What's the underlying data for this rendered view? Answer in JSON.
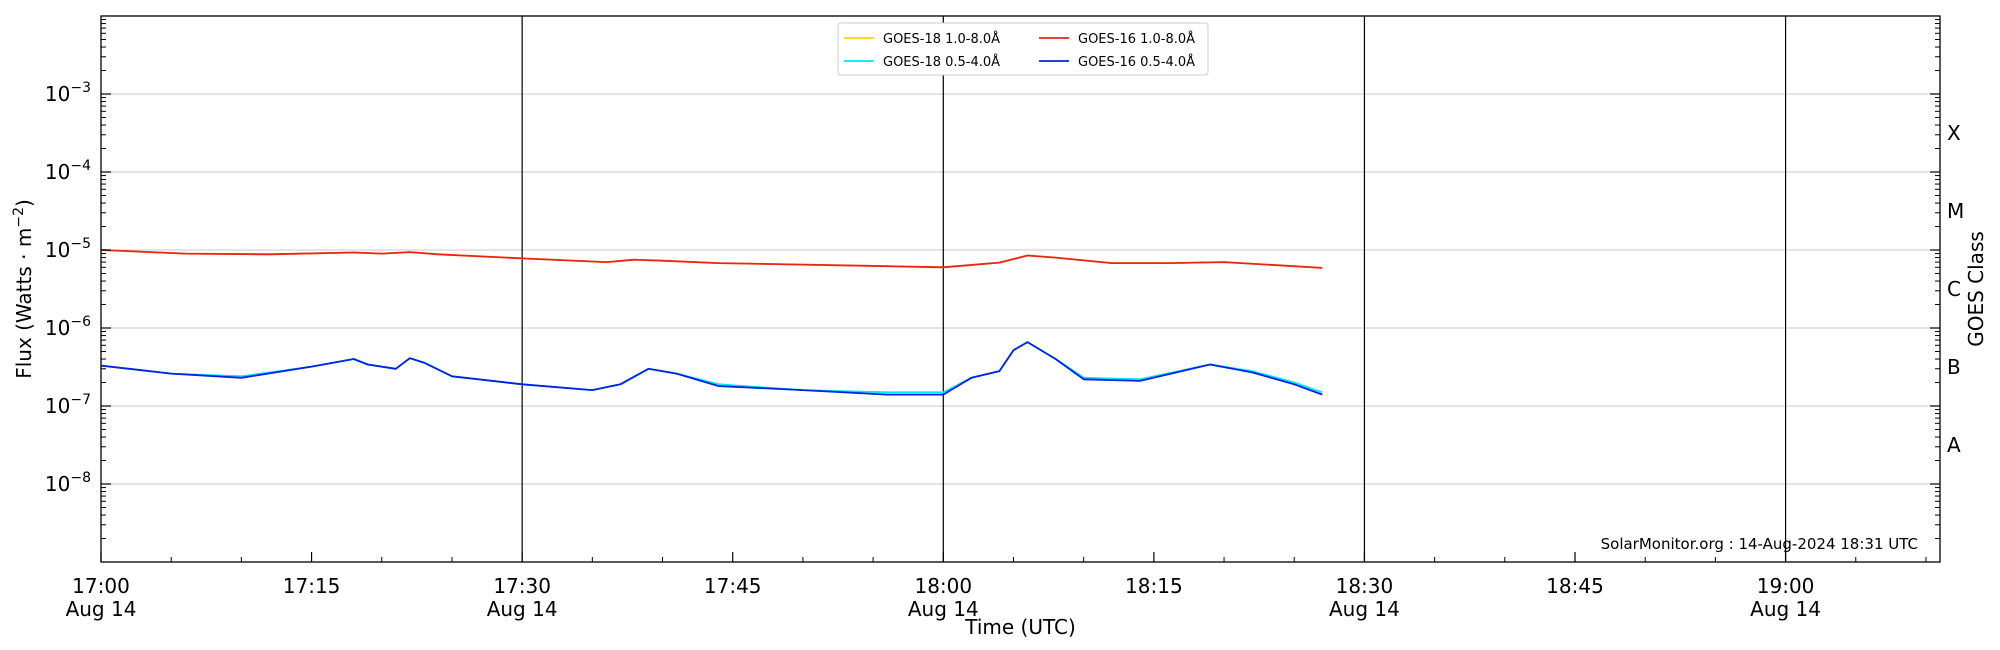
{
  "chart_data": {
    "type": "line",
    "title": "",
    "xlabel": "Time (UTC)",
    "ylabel_main": "Flux (Watts · m",
    "ylabel_exp": "−2",
    "ylabel_end": ")",
    "right_ylabel": "GOES Class",
    "yscale": "log",
    "ylim": [
      1e-09,
      0.01
    ],
    "xlim": [
      "17:00",
      "19:11"
    ],
    "grid": "horizontal",
    "legend_position": "top-center",
    "credit": "SolarMonitor.org : 14-Aug-2024 18:31 UTC",
    "y_ticks": [
      {
        "value": 1e-08,
        "base": "10",
        "exp": "−8"
      },
      {
        "value": 1e-07,
        "base": "10",
        "exp": "−7"
      },
      {
        "value": 1e-06,
        "base": "10",
        "exp": "−6"
      },
      {
        "value": 1e-05,
        "base": "10",
        "exp": "−5"
      },
      {
        "value": 0.0001,
        "base": "10",
        "exp": "−4"
      },
      {
        "value": 0.001,
        "base": "10",
        "exp": "−3"
      }
    ],
    "x_ticks": [
      {
        "t": "17:00",
        "time": "17:00",
        "date": "Aug 14"
      },
      {
        "t": "17:15",
        "time": "17:15",
        "date": ""
      },
      {
        "t": "17:30",
        "time": "17:30",
        "date": "Aug 14"
      },
      {
        "t": "17:45",
        "time": "17:45",
        "date": ""
      },
      {
        "t": "18:00",
        "time": "18:00",
        "date": "Aug 14"
      },
      {
        "t": "18:15",
        "time": "18:15",
        "date": ""
      },
      {
        "t": "18:30",
        "time": "18:30",
        "date": "Aug 14"
      },
      {
        "t": "18:45",
        "time": "18:45",
        "date": ""
      },
      {
        "t": "19:00",
        "time": "19:00",
        "date": "Aug 14"
      }
    ],
    "vertical_lines": [
      "17:30",
      "18:00",
      "18:30",
      "19:00"
    ],
    "goes_classes": [
      {
        "label": "A",
        "value": 3.16e-08
      },
      {
        "label": "B",
        "value": 3.16e-07
      },
      {
        "label": "C",
        "value": 3.16e-06
      },
      {
        "label": "M",
        "value": 3.16e-05
      },
      {
        "label": "X",
        "value": 0.000316
      }
    ],
    "legend": [
      {
        "name": "GOES-18 1.0-8.0Å",
        "color": "#ffd700"
      },
      {
        "name": "GOES-18 0.5-4.0Å",
        "color": "#00e5ff"
      },
      {
        "name": "GOES-16 1.0-8.0Å",
        "color": "#e8251b"
      },
      {
        "name": "GOES-16 0.5-4.0Å",
        "color": "#0022dd"
      }
    ],
    "series": [
      {
        "name": "GOES-18 1.0-8.0Å",
        "color": "#ffd700",
        "x": [
          "17:00",
          "17:06",
          "17:12",
          "17:18",
          "17:20",
          "17:22",
          "17:24",
          "17:30",
          "17:36",
          "17:38",
          "17:40",
          "17:44",
          "17:50",
          "17:56",
          "18:00",
          "18:04",
          "18:06",
          "18:08",
          "18:12",
          "18:16",
          "18:20",
          "18:27"
        ],
        "y": [
          1e-05,
          9e-06,
          8.8e-06,
          9.3e-06,
          9e-06,
          9.4e-06,
          8.8e-06,
          7.8e-06,
          7e-06,
          7.5e-06,
          7.3e-06,
          6.8e-06,
          6.5e-06,
          6.2e-06,
          6e-06,
          6.9e-06,
          8.5e-06,
          8e-06,
          6.8e-06,
          6.8e-06,
          7e-06,
          5.9e-06
        ]
      },
      {
        "name": "GOES-16 1.0-8.0Å",
        "color": "#e8251b",
        "x": [
          "17:00",
          "17:06",
          "17:12",
          "17:18",
          "17:20",
          "17:22",
          "17:24",
          "17:30",
          "17:36",
          "17:38",
          "17:40",
          "17:44",
          "17:50",
          "17:56",
          "18:00",
          "18:04",
          "18:06",
          "18:08",
          "18:12",
          "18:16",
          "18:20",
          "18:27"
        ],
        "y": [
          1e-05,
          9e-06,
          8.8e-06,
          9.3e-06,
          9e-06,
          9.4e-06,
          8.8e-06,
          7.8e-06,
          7e-06,
          7.5e-06,
          7.3e-06,
          6.8e-06,
          6.5e-06,
          6.2e-06,
          6e-06,
          6.9e-06,
          8.5e-06,
          8e-06,
          6.8e-06,
          6.8e-06,
          7e-06,
          5.9e-06
        ]
      },
      {
        "name": "GOES-18 0.5-4.0Å",
        "color": "#00e5ff",
        "x": [
          "17:00",
          "17:05",
          "17:10",
          "17:15",
          "17:18",
          "17:19",
          "17:21",
          "17:22",
          "17:23",
          "17:25",
          "17:30",
          "17:35",
          "17:37",
          "17:39",
          "17:41",
          "17:44",
          "17:50",
          "17:56",
          "18:00",
          "18:02",
          "18:04",
          "18:05",
          "18:06",
          "18:08",
          "18:10",
          "18:14",
          "18:19",
          "18:22",
          "18:25",
          "18:27"
        ],
        "y": [
          3.3e-07,
          2.6e-07,
          2.4e-07,
          3.2e-07,
          4e-07,
          3.4e-07,
          3e-07,
          4.1e-07,
          3.6e-07,
          2.4e-07,
          1.9e-07,
          1.6e-07,
          1.9e-07,
          3e-07,
          2.6e-07,
          1.9e-07,
          1.6e-07,
          1.5e-07,
          1.5e-07,
          2.3e-07,
          2.8e-07,
          5.2e-07,
          6.6e-07,
          4e-07,
          2.3e-07,
          2.2e-07,
          3.4e-07,
          2.8e-07,
          2e-07,
          1.5e-07
        ]
      },
      {
        "name": "GOES-16 0.5-4.0Å",
        "color": "#0022dd",
        "x": [
          "17:00",
          "17:05",
          "17:10",
          "17:15",
          "17:18",
          "17:19",
          "17:21",
          "17:22",
          "17:23",
          "17:25",
          "17:30",
          "17:35",
          "17:37",
          "17:39",
          "17:41",
          "17:44",
          "17:50",
          "17:56",
          "18:00",
          "18:02",
          "18:04",
          "18:05",
          "18:06",
          "18:08",
          "18:10",
          "18:14",
          "18:19",
          "18:22",
          "18:25",
          "18:27"
        ],
        "y": [
          3.3e-07,
          2.6e-07,
          2.3e-07,
          3.2e-07,
          4e-07,
          3.4e-07,
          3e-07,
          4.1e-07,
          3.6e-07,
          2.4e-07,
          1.9e-07,
          1.6e-07,
          1.9e-07,
          3e-07,
          2.6e-07,
          1.8e-07,
          1.6e-07,
          1.4e-07,
          1.4e-07,
          2.3e-07,
          2.8e-07,
          5.2e-07,
          6.6e-07,
          4e-07,
          2.2e-07,
          2.1e-07,
          3.4e-07,
          2.7e-07,
          1.9e-07,
          1.4e-07
        ]
      }
    ]
  }
}
